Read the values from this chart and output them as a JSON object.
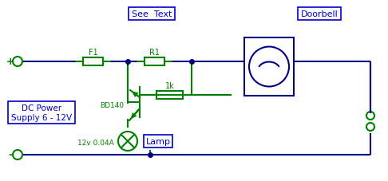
{
  "bg_color": "#ffffff",
  "wire_color": "#000080",
  "component_color": "#008000",
  "label_color": "#0000cd",
  "box_edge_color": "#0000cd",
  "see_text": "See  Text",
  "doorbell_label": "Doorbell",
  "dc_power_label": "DC Power\nSupply 6 - 12V",
  "f1_label": "F1",
  "r1_label": "R1",
  "bd140_label": "BD140",
  "lamp_label": "Lamp",
  "lamp_spec": "12v 0.04A",
  "res1k_label": "1k",
  "plus_label": "+",
  "minus_label": "-"
}
